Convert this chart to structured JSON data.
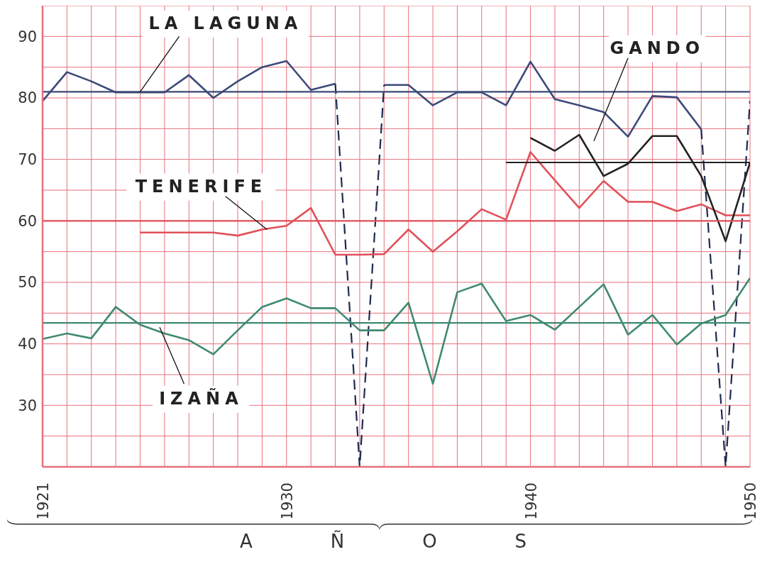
{
  "chart_data": {
    "type": "line",
    "xlabel": "AÑOS",
    "categories": [
      "1921",
      null,
      null,
      null,
      null,
      null,
      null,
      null,
      null,
      null,
      "1930",
      null,
      null,
      null,
      null,
      null,
      null,
      null,
      null,
      null,
      "1940",
      null,
      null,
      null,
      null,
      null,
      null,
      null,
      null,
      "1950"
    ],
    "ylim": [
      20,
      95
    ],
    "yticks": [
      {
        "value": 20,
        "label": null
      },
      {
        "value": 25,
        "label": null
      },
      30,
      {
        "value": 35,
        "label": null
      },
      40,
      {
        "value": 45,
        "label": null
      },
      50,
      {
        "value": 55,
        "label": null
      },
      60,
      {
        "value": 65,
        "label": null
      },
      70,
      {
        "value": 75,
        "label": null
      },
      80,
      {
        "value": 85,
        "label": null
      },
      90,
      {
        "value": 95,
        "label": null
      }
    ],
    "grid": true,
    "legend": false,
    "marker": "none",
    "line_style": "solid",
    "series": [
      {
        "name": "LA LAGUNA",
        "color": "#3b4a78",
        "values": [
          79.5,
          84.2,
          82.7,
          80.9,
          80.9,
          80.9,
          83.7,
          80,
          82.7,
          85,
          86,
          81.3,
          82.3,
          null,
          82.1,
          82.1,
          78.8,
          80.9,
          80.9,
          78.8,
          85.9,
          79.8,
          78.8,
          77.7,
          73.7,
          80.3,
          80.1,
          74.9,
          null,
          null
        ]
      },
      {
        "color": "#1f2a4f",
        "line_style": "dashed",
        "values": [
          null,
          null,
          null,
          null,
          null,
          null,
          null,
          null,
          null,
          null,
          null,
          null,
          82.3,
          20,
          82.1,
          null,
          null,
          null,
          null,
          null,
          null,
          null,
          null,
          null,
          null,
          null,
          null,
          74.9,
          20,
          79.5
        ]
      },
      {
        "name": "TENERIFE",
        "color": "#e0505a",
        "values": [
          null,
          null,
          null,
          null,
          58.1,
          58.1,
          58.1,
          58.1,
          57.6,
          58.6,
          59.2,
          62.1,
          54.5,
          54.5,
          54.6,
          58.6,
          55,
          58.3,
          61.9,
          60.2,
          71.2,
          66.6,
          62.1,
          66.5,
          63.1,
          63.1,
          61.6,
          62.7,
          60.9,
          60.9
        ]
      },
      {
        "name": "GANDO",
        "color": "#222222",
        "values": [
          null,
          null,
          null,
          null,
          null,
          null,
          null,
          null,
          null,
          null,
          null,
          null,
          null,
          null,
          null,
          null,
          null,
          null,
          null,
          null,
          73.5,
          71.4,
          74,
          67.3,
          69.3,
          73.8,
          73.8,
          67.3,
          56.7,
          69.5
        ]
      },
      {
        "name": "IZAÑA",
        "color": "#3f8a70",
        "values": [
          40.8,
          41.7,
          40.9,
          46,
          43.1,
          41.7,
          40.6,
          38.3,
          42.2,
          46,
          47.4,
          45.8,
          45.8,
          42.2,
          42.2,
          46.7,
          33.5,
          48.4,
          49.8,
          43.7,
          44.7,
          42.3,
          46,
          49.7,
          41.5,
          44.7,
          39.9,
          43.3,
          44.7,
          50.7
        ]
      },
      {
        "color": "#3b4a78",
        "values": [
          81,
          81,
          81,
          81,
          81,
          81,
          81,
          81,
          81,
          81,
          81,
          81,
          81,
          81,
          81,
          81,
          81,
          81,
          81,
          81,
          81,
          81,
          81,
          81,
          81,
          81,
          81,
          81,
          81,
          81
        ]
      },
      {
        "color": "#e0505a",
        "values": [
          60,
          60,
          60,
          60,
          60,
          60,
          60,
          60,
          60,
          60,
          60,
          60,
          60,
          60,
          60,
          60,
          60,
          60,
          60,
          60,
          60,
          60,
          60,
          60,
          60,
          60,
          60,
          60,
          60,
          60
        ]
      },
      {
        "color": "#222222",
        "values": [
          null,
          null,
          null,
          null,
          null,
          null,
          null,
          null,
          null,
          null,
          null,
          null,
          null,
          null,
          null,
          null,
          null,
          null,
          null,
          69.5,
          69.5,
          69.5,
          69.5,
          69.5,
          69.5,
          69.5,
          69.5,
          69.5,
          69.5,
          69.5
        ]
      },
      {
        "color": "#3f8a70",
        "values": [
          43.4,
          43.4,
          43.4,
          43.4,
          43.4,
          43.4,
          43.4,
          43.4,
          43.4,
          43.4,
          43.4,
          43.4,
          43.4,
          43.4,
          43.4,
          43.4,
          43.4,
          43.4,
          43.4,
          43.4,
          43.4,
          43.4,
          43.4,
          43.4,
          43.4,
          43.4,
          43.4,
          43.4,
          43.4,
          43.4
        ]
      }
    ]
  }
}
